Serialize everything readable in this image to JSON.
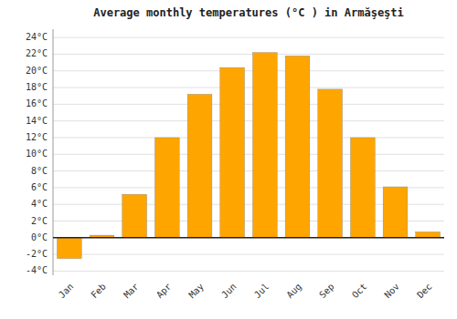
{
  "chart_data": {
    "type": "bar",
    "title": "Average monthly temperatures (°C ) in Armăşeşti",
    "categories": [
      "Jan",
      "Feb",
      "Mar",
      "Apr",
      "May",
      "Jun",
      "Jul",
      "Aug",
      "Sep",
      "Oct",
      "Nov",
      "Dec"
    ],
    "values": [
      -2.5,
      0.3,
      5.2,
      12.0,
      17.2,
      20.4,
      22.2,
      21.8,
      17.8,
      12.0,
      6.1,
      0.7
    ],
    "color": "#FFA500",
    "ylim": [
      -4.5,
      25
    ],
    "yticks": [
      {
        "value": -4,
        "label": "-4°C"
      },
      {
        "value": -2,
        "label": "-2°C"
      },
      {
        "value": 0,
        "label": "0°C"
      },
      {
        "value": 2,
        "label": "2°C"
      },
      {
        "value": 4,
        "label": "4°C"
      },
      {
        "value": 6,
        "label": "6°C"
      },
      {
        "value": 8,
        "label": "8°C"
      },
      {
        "value": 10,
        "label": "10°C"
      },
      {
        "value": 12,
        "label": "12°C"
      },
      {
        "value": 14,
        "label": "14°C"
      },
      {
        "value": 16,
        "label": "16°C"
      },
      {
        "value": 18,
        "label": "18°C"
      },
      {
        "value": 20,
        "label": "20°C"
      },
      {
        "value": 22,
        "label": "22°C"
      },
      {
        "value": 24,
        "label": "24°C"
      }
    ],
    "grid": true
  }
}
